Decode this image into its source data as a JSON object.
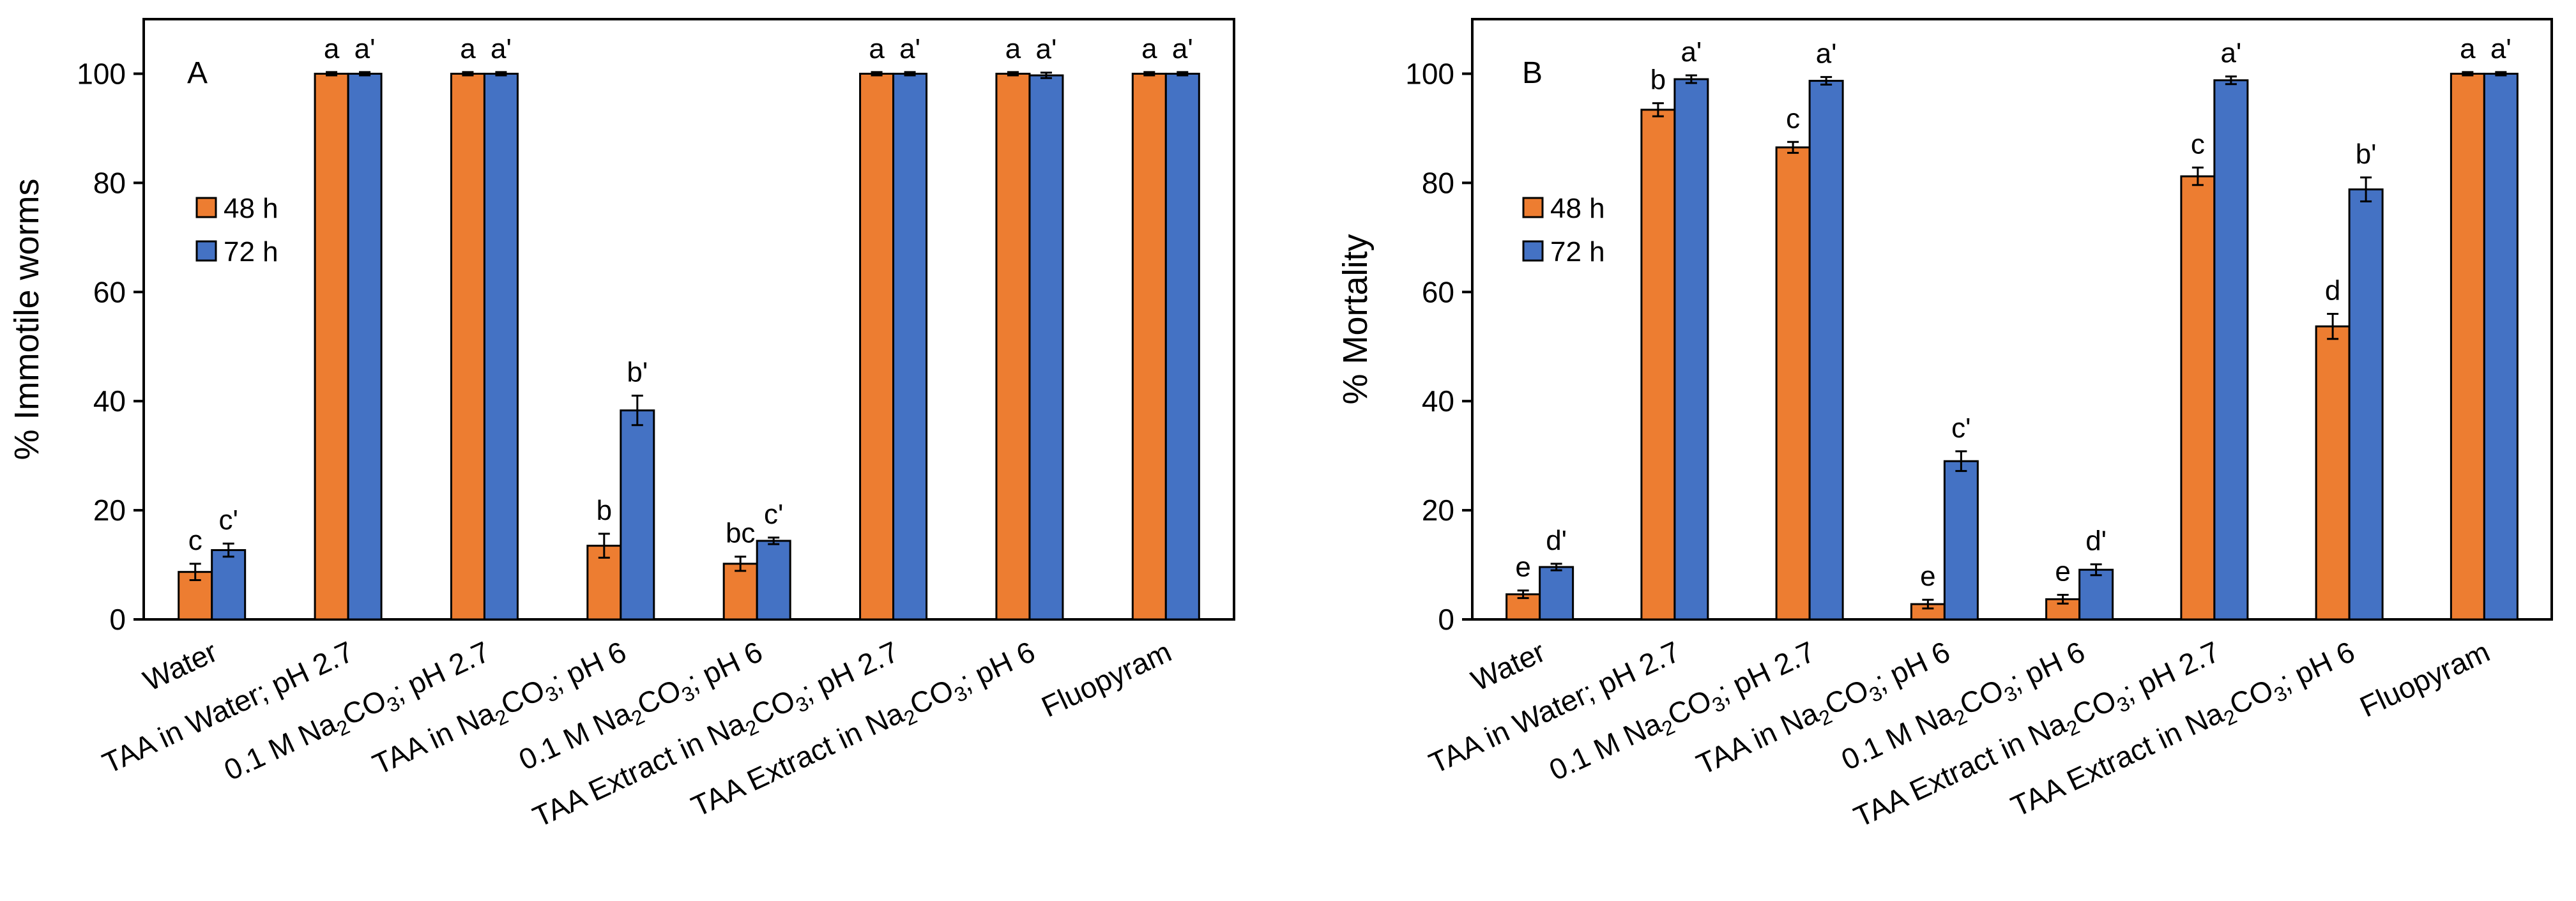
{
  "categories": [
    {
      "parts": [
        {
          "t": "Water"
        }
      ]
    },
    {
      "parts": [
        {
          "t": "TAA in Water; pH 2.7"
        }
      ]
    },
    {
      "parts": [
        {
          "t": "0.1 M Na"
        },
        {
          "t": "2",
          "sub": true
        },
        {
          "t": "CO"
        },
        {
          "t": "3",
          "sub": true
        },
        {
          "t": "; pH 2.7"
        }
      ]
    },
    {
      "parts": [
        {
          "t": "TAA in Na"
        },
        {
          "t": "2",
          "sub": true
        },
        {
          "t": "CO"
        },
        {
          "t": "3",
          "sub": true
        },
        {
          "t": "; pH 6"
        }
      ]
    },
    {
      "parts": [
        {
          "t": "0.1 M Na"
        },
        {
          "t": "2",
          "sub": true
        },
        {
          "t": "CO"
        },
        {
          "t": "3",
          "sub": true
        },
        {
          "t": "; pH 6"
        }
      ]
    },
    {
      "parts": [
        {
          "t": "TAA Extract in Na"
        },
        {
          "t": "2",
          "sub": true
        },
        {
          "t": "CO"
        },
        {
          "t": "3",
          "sub": true
        },
        {
          "t": "; pH 2.7"
        }
      ]
    },
    {
      "parts": [
        {
          "t": "TAA Extract in Na"
        },
        {
          "t": "2",
          "sub": true
        },
        {
          "t": "CO"
        },
        {
          "t": "3",
          "sub": true
        },
        {
          "t": "; pH 6"
        }
      ]
    },
    {
      "parts": [
        {
          "t": "Fluopyram"
        }
      ]
    }
  ],
  "colors": {
    "s48": "#ED7D31",
    "s72": "#4472C4",
    "axis": "#000000"
  },
  "chart_data": [
    {
      "type": "bar",
      "panel": "A",
      "ylabel": "% Immotile worms",
      "ylim": [
        0,
        110
      ],
      "yticks": [
        0,
        20,
        40,
        60,
        80,
        100
      ],
      "legend": [
        "48 h",
        "72 h"
      ],
      "series": [
        {
          "name": "48 h",
          "values": [
            8.7,
            100,
            100,
            13.5,
            10.2,
            100,
            100,
            100
          ],
          "errors": [
            1.5,
            0.3,
            0.3,
            2.2,
            1.3,
            0.3,
            0.3,
            0.3
          ],
          "letters": [
            "c",
            "a",
            "a",
            "b",
            "bc",
            "a",
            "a",
            "a"
          ]
        },
        {
          "name": "72 h",
          "values": [
            12.7,
            100,
            100,
            38.3,
            14.4,
            100,
            99.7,
            100
          ],
          "errors": [
            1.2,
            0.3,
            0.3,
            2.7,
            0.6,
            0.3,
            0.5,
            0.3
          ],
          "letters": [
            "c'",
            "a'",
            "a'",
            "b'",
            "c'",
            "a'",
            "a'",
            "a'"
          ]
        }
      ]
    },
    {
      "type": "bar",
      "panel": "B",
      "ylabel": "% Mortality",
      "ylim": [
        0,
        110
      ],
      "yticks": [
        0,
        20,
        40,
        60,
        80,
        100
      ],
      "legend": [
        "48 h",
        "72 h"
      ],
      "series": [
        {
          "name": "48 h",
          "values": [
            4.6,
            93.4,
            86.5,
            2.8,
            3.7,
            81.2,
            53.7,
            100
          ],
          "errors": [
            0.7,
            1.2,
            1.0,
            0.8,
            0.8,
            1.6,
            2.3,
            0.3
          ],
          "letters": [
            "e",
            "b",
            "c",
            "e",
            "e",
            "c",
            "d",
            "a"
          ]
        },
        {
          "name": "72 h",
          "values": [
            9.6,
            99.0,
            98.7,
            29.0,
            9.1,
            98.8,
            78.8,
            100
          ],
          "errors": [
            0.6,
            0.7,
            0.7,
            1.8,
            1.0,
            0.7,
            2.2,
            0.3
          ],
          "letters": [
            "d'",
            "a'",
            "a'",
            "c'",
            "d'",
            "a'",
            "b'",
            "a'"
          ]
        }
      ]
    }
  ]
}
